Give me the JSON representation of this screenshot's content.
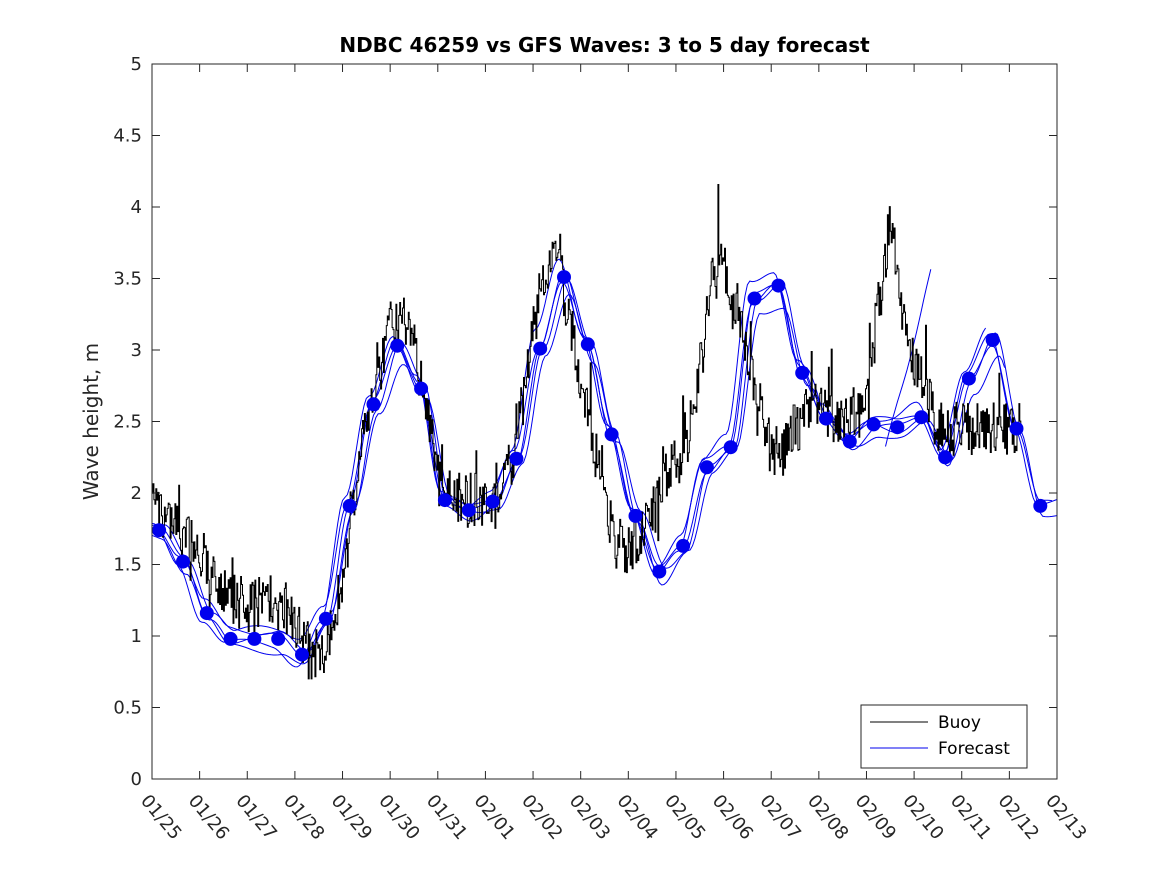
{
  "chart_data": {
    "type": "line",
    "title": "NDBC 46259 vs GFS Waves: 3 to 5 day forecast",
    "xlabel": "",
    "ylabel": "Wave height, m",
    "xlim": [
      0,
      19
    ],
    "ylim": [
      0,
      5
    ],
    "yticks": [
      "0",
      "0.5",
      "1",
      "1.5",
      "2",
      "2.5",
      "3",
      "3.5",
      "4",
      "4.5",
      "5"
    ],
    "categories": [
      "01/25",
      "01/26",
      "01/27",
      "01/28",
      "01/29",
      "01/30",
      "01/31",
      "02/01",
      "02/02",
      "02/03",
      "02/04",
      "02/05",
      "02/06",
      "02/07",
      "02/08",
      "02/09",
      "02/10",
      "02/11",
      "02/12",
      "02/13"
    ],
    "legend": {
      "position": "bottom-right",
      "entries": [
        "Buoy",
        "Forecast"
      ]
    },
    "series": [
      {
        "name": "Buoy",
        "color": "#000000",
        "x": [
          0.0,
          0.25,
          0.5,
          0.75,
          1.0,
          1.25,
          1.5,
          1.75,
          2.0,
          2.25,
          2.5,
          2.75,
          3.0,
          3.25,
          3.5,
          3.75,
          4.0,
          4.25,
          4.5,
          4.75,
          5.0,
          5.25,
          5.5,
          5.75,
          6.0,
          6.25,
          6.5,
          6.75,
          7.0,
          7.25,
          7.5,
          7.75,
          8.0,
          8.25,
          8.5,
          8.75,
          9.0,
          9.25,
          9.5,
          9.75,
          10.0,
          10.25,
          10.5,
          10.75,
          11.0,
          11.25,
          11.5,
          11.75,
          12.0,
          12.25,
          12.5,
          12.75,
          13.0,
          13.25,
          13.5,
          13.75,
          14.0,
          14.25,
          14.5,
          14.75,
          15.0,
          15.25,
          15.5,
          15.75,
          16.0,
          16.25,
          16.5,
          16.75,
          17.0,
          17.25,
          17.5,
          17.75,
          18.0,
          18.25,
          18.5,
          18.75,
          19.0
        ],
        "values": [
          2.05,
          1.85,
          1.75,
          1.7,
          1.6,
          1.45,
          1.3,
          1.25,
          1.2,
          1.25,
          1.25,
          1.2,
          1.1,
          0.95,
          0.85,
          1.0,
          1.4,
          2.0,
          2.55,
          2.9,
          3.15,
          3.2,
          3.0,
          2.6,
          2.2,
          2.0,
          1.95,
          1.95,
          1.95,
          1.9,
          2.2,
          2.6,
          3.1,
          3.55,
          3.7,
          3.2,
          2.8,
          2.3,
          1.9,
          1.65,
          1.6,
          1.7,
          1.85,
          2.15,
          2.25,
          2.4,
          2.9,
          3.5,
          3.6,
          3.25,
          2.95,
          2.55,
          2.3,
          2.3,
          2.45,
          2.6,
          2.65,
          2.5,
          2.55,
          2.55,
          2.6,
          3.3,
          3.9,
          3.2,
          2.9,
          2.7,
          2.45,
          null,
          null,
          null,
          null,
          null,
          null,
          null,
          null,
          null,
          null
        ]
      },
      {
        "name": "Forecast",
        "color": "#0000ee",
        "x": [
          0.15,
          0.65,
          1.15,
          1.65,
          2.15,
          2.65,
          3.15,
          3.65,
          4.15,
          4.65,
          5.15,
          5.65,
          6.15,
          6.65,
          7.15,
          7.65,
          8.15,
          8.65,
          9.15,
          9.65,
          10.15,
          10.65,
          11.15,
          11.65,
          12.15,
          12.65,
          13.15,
          13.65,
          14.15,
          14.65,
          15.15,
          15.65,
          16.15,
          16.65,
          17.15,
          17.65,
          18.15,
          18.65
        ],
        "values": [
          1.74,
          1.52,
          1.16,
          0.98,
          0.98,
          0.98,
          0.87,
          1.12,
          1.91,
          2.62,
          3.03,
          2.73,
          1.95,
          1.88,
          1.94,
          2.24,
          3.01,
          3.51,
          3.04,
          2.41,
          1.84,
          1.45,
          1.63,
          2.18,
          2.32,
          3.36,
          3.45,
          2.84,
          2.52,
          2.36,
          2.48,
          2.46,
          2.53,
          2.25,
          2.8,
          3.07,
          2.45,
          1.91
        ]
      }
    ]
  }
}
